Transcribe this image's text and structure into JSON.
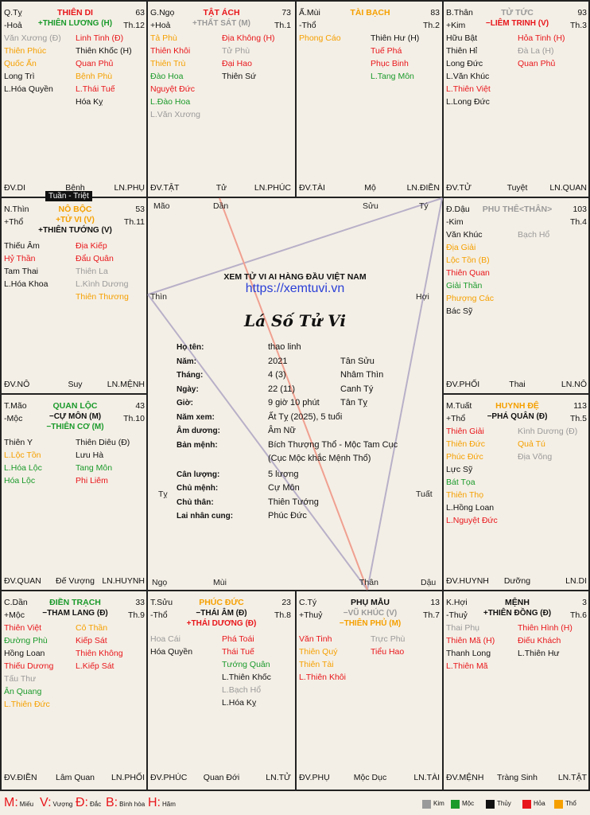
{
  "center": {
    "site_title": "XEM TỬ VI AI HÀNG ĐẦU VIỆT NAM",
    "url": "https://xemtuvi.vn",
    "heading": "Lá Số Tử Vi",
    "info": [
      {
        "label": "Họ tên:",
        "value": "thao linh",
        "extra": ""
      },
      {
        "label": "Năm:",
        "value": "2021",
        "extra": "Tân Sửu"
      },
      {
        "label": "Tháng:",
        "value": "4 (3)",
        "extra": "Nhâm Thìn"
      },
      {
        "label": "Ngày:",
        "value": "22 (11)",
        "extra": "Canh Tý"
      },
      {
        "label": "Giờ:",
        "value": "9 giờ 10 phút",
        "extra": "Tân Tỵ"
      },
      {
        "label": "Năm xem:",
        "value": "Ất Tỵ (2025), 5 tuổi",
        "extra": ""
      },
      {
        "label": "Âm dương:",
        "value": "Âm Nữ",
        "extra": ""
      },
      {
        "label": "Bản mệnh:",
        "value": "Bích Thượng Thổ - Mộc Tam Cục",
        "extra": ""
      },
      {
        "label": "",
        "value": "(Cục Mộc khắc Mệnh Thổ)",
        "extra": ""
      },
      {
        "label": "Cân lượng:",
        "value": "5 lượng",
        "extra": ""
      },
      {
        "label": "Chủ mệnh:",
        "value": "Cự Môn",
        "extra": ""
      },
      {
        "label": "Chủ thân:",
        "value": "Thiên Tướng",
        "extra": ""
      },
      {
        "label": "Lai nhân cung:",
        "value": "Phúc Đức",
        "extra": ""
      }
    ],
    "branch_labels": [
      "Mão",
      "Dần",
      "Sửu",
      "Tý",
      "Thìn",
      "Hợi",
      "Tỵ",
      "Tuất",
      "Ngọ",
      "Mùi",
      "Thân",
      "Dậu"
    ]
  },
  "tuan_triet": "Tuần - Triệt",
  "palaces": [
    {
      "branch": "Q.Tỵ",
      "element": "-Hoả",
      "name": "THIÊN DI",
      "name_color": "hoa",
      "number": "63",
      "th": "Th.12",
      "main": [
        {
          "t": "+THIÊN LƯƠNG (H)",
          "c": "moc"
        }
      ],
      "left": [
        {
          "t": "Văn Xương (Đ)",
          "c": "kim"
        },
        {
          "t": "Thiên Phúc",
          "c": "tho"
        },
        {
          "t": "Quốc Ấn",
          "c": "tho"
        },
        {
          "t": "Long Trì",
          "c": "thuy"
        },
        {
          "t": "L.Hóa Quyền",
          "c": "thuy"
        }
      ],
      "right": [
        {
          "t": "Linh Tinh (Đ)",
          "c": "hoa"
        },
        {
          "t": "Thiên Khốc (H)",
          "c": "thuy"
        },
        {
          "t": "Quan Phủ",
          "c": "hoa"
        },
        {
          "t": "Bệnh Phù",
          "c": "tho"
        },
        {
          "t": "L.Thái Tuế",
          "c": "hoa"
        },
        {
          "t": "Hóa Kỵ",
          "c": "thuy"
        }
      ],
      "foot": [
        "ĐV.DI",
        "Bệnh",
        "LN.PHỤ"
      ]
    },
    {
      "branch": "G.Ngọ",
      "element": "+Hoả",
      "name": "TẬT ÁCH",
      "name_color": "hoa",
      "number": "73",
      "th": "Th.1",
      "main": [
        {
          "t": "+THẤT SÁT (M)",
          "c": "kim"
        }
      ],
      "left": [
        {
          "t": "Tả Phù",
          "c": "tho"
        },
        {
          "t": "Thiên Khôi",
          "c": "hoa"
        },
        {
          "t": "Thiên Trù",
          "c": "tho"
        },
        {
          "t": "Đào Hoa",
          "c": "moc"
        },
        {
          "t": "Nguyệt Đức",
          "c": "hoa"
        },
        {
          "t": "L.Đào Hoa",
          "c": "moc"
        },
        {
          "t": "L.Văn Xương",
          "c": "kim"
        }
      ],
      "right": [
        {
          "t": "Địa Không (H)",
          "c": "hoa"
        },
        {
          "t": "Tử Phù",
          "c": "kim"
        },
        {
          "t": "Đại Hao",
          "c": "hoa"
        },
        {
          "t": "Thiên Sứ",
          "c": "thuy"
        }
      ],
      "foot": [
        "ĐV.TẬT",
        "Tử",
        "LN.PHÚC"
      ]
    },
    {
      "branch": "Ấ.Mùi",
      "element": "-Thổ",
      "name": "TÀI BẠCH",
      "name_color": "tho",
      "number": "83",
      "th": "Th.2",
      "main": [],
      "left": [
        {
          "t": "Phong Cáo",
          "c": "tho"
        }
      ],
      "right": [
        {
          "t": "Thiên Hư (H)",
          "c": "thuy"
        },
        {
          "t": "Tuế Phá",
          "c": "hoa"
        },
        {
          "t": "Phục Binh",
          "c": "hoa"
        },
        {
          "t": "L.Tang Môn",
          "c": "moc"
        }
      ],
      "foot": [
        "ĐV.TÀI",
        "Mộ",
        "LN.ĐIỀN"
      ]
    },
    {
      "branch": "B.Thân",
      "element": "+Kim",
      "name": "TỬ TỨC",
      "name_color": "kim",
      "number": "93",
      "th": "Th.3",
      "main": [
        {
          "t": "−LIÊM TRINH (V)",
          "c": "hoa"
        }
      ],
      "left": [
        {
          "t": "Hữu Bật",
          "c": "thuy"
        },
        {
          "t": "Thiên Hỉ",
          "c": "thuy"
        },
        {
          "t": "Long Đức",
          "c": "thuy"
        },
        {
          "t": "L.Văn Khúc",
          "c": "thuy"
        },
        {
          "t": "L.Thiên Việt",
          "c": "hoa"
        },
        {
          "t": "L.Long Đức",
          "c": "thuy"
        }
      ],
      "right": [
        {
          "t": "Hỏa Tinh (H)",
          "c": "hoa"
        },
        {
          "t": "Đà La (H)",
          "c": "kim"
        },
        {
          "t": "Quan Phủ",
          "c": "hoa"
        }
      ],
      "foot": [
        "ĐV.TỬ",
        "Tuyệt",
        "LN.QUAN"
      ]
    },
    {
      "branch": "N.Thìn",
      "element": "+Thổ",
      "name": "NÔ BỘC",
      "name_color": "tho",
      "number": "53",
      "th": "Th.11",
      "main": [
        {
          "t": "+TỬ VI (V)",
          "c": "tho"
        },
        {
          "t": "+THIÊN TƯỚNG (V)",
          "c": "thuy"
        }
      ],
      "left": [
        {
          "t": "Thiếu Âm",
          "c": "thuy"
        },
        {
          "t": "Hỷ Thần",
          "c": "hoa"
        },
        {
          "t": "Tam Thai",
          "c": "thuy"
        },
        {
          "t": "L.Hóa Khoa",
          "c": "thuy"
        }
      ],
      "right": [
        {
          "t": "Địa Kiếp",
          "c": "hoa"
        },
        {
          "t": "Đẩu Quân",
          "c": "hoa"
        },
        {
          "t": "Thiên La",
          "c": "kim"
        },
        {
          "t": "L.Kình Dương",
          "c": "kim"
        },
        {
          "t": "Thiên Thương",
          "c": "tho"
        }
      ],
      "foot": [
        "ĐV.NÔ",
        "Suy",
        "LN.MỆNH"
      ]
    },
    {
      "branch": "Đ.Dậu",
      "element": "-Kim",
      "name": "PHU THÊ<THÂN>",
      "name_color": "kim",
      "number": "103",
      "th": "Th.4",
      "main": [],
      "left": [
        {
          "t": "Văn Khúc",
          "c": "thuy"
        },
        {
          "t": "Địa Giải",
          "c": "tho"
        },
        {
          "t": "Lộc Tồn (B)",
          "c": "tho"
        },
        {
          "t": "Thiên Quan",
          "c": "hoa"
        },
        {
          "t": "Giải Thần",
          "c": "moc"
        },
        {
          "t": "Phượng Các",
          "c": "tho"
        },
        {
          "t": "Bác Sỹ",
          "c": "thuy"
        }
      ],
      "right": [
        {
          "t": "Bạch Hổ",
          "c": "kim"
        }
      ],
      "foot": [
        "ĐV.PHỐI",
        "Thai",
        "LN.NÔ"
      ]
    },
    {
      "branch": "T.Mão",
      "element": "-Mộc",
      "name": "QUAN LỘC",
      "name_color": "moc",
      "number": "43",
      "th": "Th.10",
      "main": [
        {
          "t": "−CỰ MÔN (M)",
          "c": "thuy"
        },
        {
          "t": "−THIÊN CƠ (M)",
          "c": "moc"
        }
      ],
      "left": [
        {
          "t": "Thiên Y",
          "c": "thuy"
        },
        {
          "t": "L.Lộc Tồn",
          "c": "tho"
        },
        {
          "t": "L.Hóa Lộc",
          "c": "moc"
        },
        {
          "t": "Hóa Lộc",
          "c": "moc"
        }
      ],
      "right": [
        {
          "t": "Thiên Diêu (Đ)",
          "c": "thuy"
        },
        {
          "t": "Lưu Hà",
          "c": "thuy"
        },
        {
          "t": "Tang Môn",
          "c": "moc"
        },
        {
          "t": "Phi Liêm",
          "c": "hoa"
        }
      ],
      "foot": [
        "ĐV.QUAN",
        "Đế Vượng",
        "LN.HUYNH"
      ]
    },
    {
      "branch": "M.Tuất",
      "element": "+Thổ",
      "name": "HUYNH ĐỆ",
      "name_color": "tho",
      "number": "113",
      "th": "Th.5",
      "main": [
        {
          "t": "−PHÁ QUÂN (Đ)",
          "c": "thuy"
        }
      ],
      "left": [
        {
          "t": "Thiên Giải",
          "c": "hoa"
        },
        {
          "t": "Thiên Đức",
          "c": "tho"
        },
        {
          "t": "Phúc Đức",
          "c": "tho"
        },
        {
          "t": "Lực Sỹ",
          "c": "thuy"
        },
        {
          "t": "Bát Tọa",
          "c": "moc"
        },
        {
          "t": "Thiên Thọ",
          "c": "tho"
        },
        {
          "t": "L.Hồng Loan",
          "c": "thuy"
        },
        {
          "t": "L.Nguyệt Đức",
          "c": "hoa"
        }
      ],
      "right": [
        {
          "t": "Kình Dương (Đ)",
          "c": "kim"
        },
        {
          "t": "Quả Tú",
          "c": "tho"
        },
        {
          "t": "Địa Võng",
          "c": "kim"
        }
      ],
      "foot": [
        "ĐV.HUYNH",
        "Dưỡng",
        "LN.DI"
      ]
    },
    {
      "branch": "C.Dần",
      "element": "+Mộc",
      "name": "ĐIỀN TRẠCH",
      "name_color": "moc",
      "number": "33",
      "th": "Th.9",
      "main": [
        {
          "t": "−THAM LANG (Đ)",
          "c": "thuy"
        }
      ],
      "left": [
        {
          "t": "Thiên Việt",
          "c": "hoa"
        },
        {
          "t": "Đường Phù",
          "c": "moc"
        },
        {
          "t": "Hồng Loan",
          "c": "thuy"
        },
        {
          "t": "Thiếu Dương",
          "c": "hoa"
        },
        {
          "t": "Tấu Thư",
          "c": "kim"
        },
        {
          "t": "Ân Quang",
          "c": "moc"
        },
        {
          "t": "L.Thiên Đức",
          "c": "tho"
        }
      ],
      "right": [
        {
          "t": "Cô Thần",
          "c": "tho"
        },
        {
          "t": "Kiếp Sát",
          "c": "hoa"
        },
        {
          "t": "Thiên Không",
          "c": "hoa"
        },
        {
          "t": "L.Kiếp Sát",
          "c": "hoa"
        }
      ],
      "foot": [
        "ĐV.ĐIỀN",
        "Lâm Quan",
        "LN.PHỐI"
      ]
    },
    {
      "branch": "T.Sửu",
      "element": "-Thổ",
      "name": "PHÚC ĐỨC",
      "name_color": "tho",
      "number": "23",
      "th": "Th.8",
      "main": [
        {
          "t": "−THÁI ÂM (Đ)",
          "c": "thuy"
        },
        {
          "t": "+THÁI DƯƠNG (Đ)",
          "c": "hoa"
        }
      ],
      "left": [
        {
          "t": "Hoa Cái",
          "c": "kim"
        },
        {
          "t": "Hóa Quyền",
          "c": "thuy"
        }
      ],
      "right": [
        {
          "t": "Phá Toái",
          "c": "hoa"
        },
        {
          "t": "Thái Tuế",
          "c": "hoa"
        },
        {
          "t": "Tướng Quân",
          "c": "moc"
        },
        {
          "t": "L.Thiên Khốc",
          "c": "thuy"
        },
        {
          "t": "L.Bạch Hổ",
          "c": "kim"
        },
        {
          "t": "L.Hóa Kỵ",
          "c": "thuy"
        }
      ],
      "foot": [
        "ĐV.PHÚC",
        "Quan Đới",
        "LN.TỬ"
      ]
    },
    {
      "branch": "C.Tý",
      "element": "+Thuỷ",
      "name": "PHỤ MẪU",
      "name_color": "thuy",
      "number": "13",
      "th": "Th.7",
      "main": [
        {
          "t": "−VŨ KHÚC (V)",
          "c": "kim"
        },
        {
          "t": "−THIÊN PHỦ (M)",
          "c": "tho"
        }
      ],
      "left": [
        {
          "t": "Văn Tinh",
          "c": "hoa"
        },
        {
          "t": "Thiên Quý",
          "c": "tho"
        },
        {
          "t": "Thiên Tài",
          "c": "tho"
        },
        {
          "t": "L.Thiên Khôi",
          "c": "hoa"
        }
      ],
      "right": [
        {
          "t": "Trực Phù",
          "c": "kim"
        },
        {
          "t": "Tiểu Hao",
          "c": "hoa"
        }
      ],
      "foot": [
        "ĐV.PHỤ",
        "Mộc Dục",
        "LN.TÀI"
      ]
    },
    {
      "branch": "K.Hợi",
      "element": "-Thuỷ",
      "name": "MỆNH",
      "name_color": "thuy",
      "number": "3",
      "th": "Th.6",
      "main": [
        {
          "t": "+THIÊN ĐỒNG (Đ)",
          "c": "thuy"
        }
      ],
      "left": [
        {
          "t": "Thai Phụ",
          "c": "kim"
        },
        {
          "t": "Thiên Mã (H)",
          "c": "hoa"
        },
        {
          "t": "Thanh Long",
          "c": "thuy"
        },
        {
          "t": "L.Thiên Mã",
          "c": "hoa"
        }
      ],
      "right": [
        {
          "t": "Thiên Hình (H)",
          "c": "hoa"
        },
        {
          "t": "Điếu Khách",
          "c": "hoa"
        },
        {
          "t": "L.Thiên Hư",
          "c": "thuy"
        }
      ],
      "foot": [
        "ĐV.MỆNH",
        "Tràng Sinh",
        "LN.TẬT"
      ]
    }
  ],
  "legend": {
    "abbrev": [
      {
        "k": "M:",
        "v": "Miếu"
      },
      {
        "k": "V:",
        "v": "Vượng"
      },
      {
        "k": "Đ:",
        "v": "Đắc"
      },
      {
        "k": "B:",
        "v": "Bình hòa"
      },
      {
        "k": "H:",
        "v": "Hãm"
      }
    ],
    "elements": [
      {
        "label": "Kim",
        "color": "#9a9a9a"
      },
      {
        "label": "Mộc",
        "color": "#1a9a2b"
      },
      {
        "label": "Thủy",
        "color": "#111111"
      },
      {
        "label": "Hỏa",
        "color": "#e8161b"
      },
      {
        "label": "Thổ",
        "color": "#f5a000"
      }
    ]
  }
}
